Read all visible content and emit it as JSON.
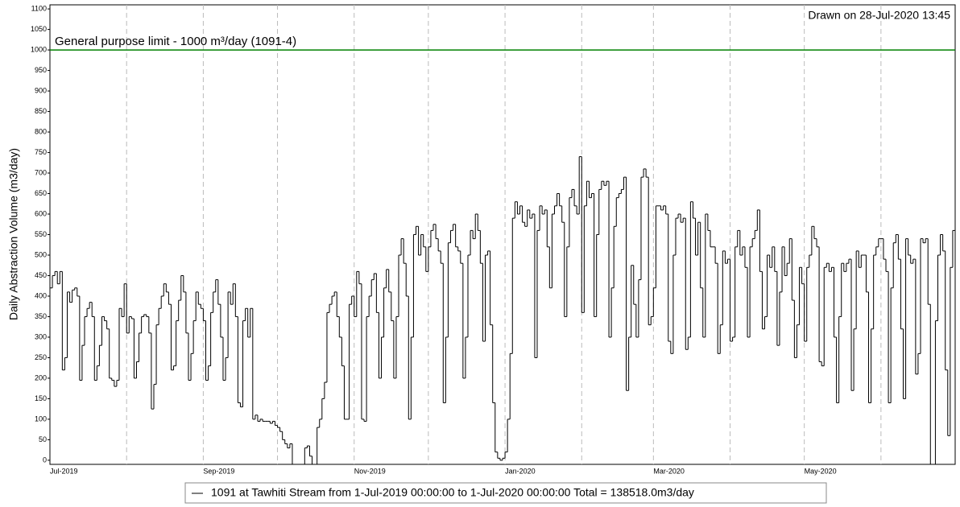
{
  "chart_data": {
    "type": "line",
    "drawstyle": "steps-post",
    "ylabel": "Daily Abstraction Volume (m3/day)",
    "annotation": "Drawn on 28-Jul-2020 13:45",
    "xlim": [
      0,
      366
    ],
    "ylim": [
      -10,
      1110
    ],
    "xticks": [
      {
        "value": 0,
        "label": "Jul-2019"
      },
      {
        "value": 62,
        "label": "Sep-2019"
      },
      {
        "value": 123,
        "label": "Nov-2019"
      },
      {
        "value": 184,
        "label": "Jan-2020"
      },
      {
        "value": 244,
        "label": "Mar-2020"
      },
      {
        "value": 305,
        "label": "May-2020"
      }
    ],
    "xminor": [
      31,
      92,
      153,
      215,
      275,
      336
    ],
    "yticks": [
      0,
      50,
      100,
      150,
      200,
      250,
      300,
      350,
      400,
      450,
      500,
      550,
      600,
      650,
      700,
      750,
      800,
      850,
      900,
      950,
      1000,
      1050,
      1100
    ],
    "grid_x": true,
    "hlines": [
      {
        "value": 1000,
        "label": "General purpose limit - 1000 m³/day (1091-4)",
        "color": "#008000"
      }
    ],
    "legend": "bottom",
    "series": [
      {
        "name": "1091 at Tawhiti Stream from  1-Jul-2019 00:00:00 to  1-Jul-2020 00:00:00  Total = 138518.0m3/day",
        "color": "#000000",
        "values": [
          420,
          450,
          460,
          430,
          460,
          220,
          250,
          410,
          385,
          415,
          420,
          400,
          195,
          280,
          350,
          370,
          385,
          350,
          195,
          230,
          280,
          350,
          340,
          320,
          200,
          195,
          180,
          195,
          370,
          350,
          430,
          310,
          350,
          345,
          200,
          240,
          310,
          350,
          355,
          350,
          310,
          125,
          185,
          330,
          370,
          400,
          430,
          410,
          380,
          220,
          230,
          340,
          390,
          450,
          410,
          310,
          195,
          260,
          340,
          410,
          380,
          370,
          340,
          195,
          230,
          360,
          410,
          440,
          380,
          300,
          195,
          250,
          410,
          380,
          430,
          350,
          140,
          130,
          340,
          370,
          300,
          370,
          100,
          110,
          95,
          100,
          95,
          95,
          95,
          90,
          95,
          85,
          80,
          70,
          50,
          40,
          30,
          40,
          -10,
          -10,
          -10,
          -10,
          -10,
          30,
          35,
          10,
          -10,
          -10,
          80,
          100,
          150,
          190,
          360,
          380,
          400,
          410,
          350,
          300,
          230,
          100,
          100,
          380,
          400,
          350,
          460,
          430,
          100,
          95,
          350,
          400,
          440,
          455,
          360,
          200,
          300,
          420,
          465,
          410,
          340,
          200,
          350,
          500,
          540,
          480,
          400,
          100,
          300,
          550,
          570,
          500,
          550,
          520,
          460,
          520,
          560,
          575,
          540,
          510,
          480,
          140,
          300,
          530,
          560,
          575,
          520,
          510,
          480,
          200,
          300,
          500,
          560,
          540,
          600,
          560,
          480,
          290,
          500,
          510,
          330,
          140,
          20,
          5,
          0,
          5,
          20,
          100,
          260,
          590,
          630,
          600,
          620,
          580,
          570,
          610,
          590,
          600,
          250,
          560,
          620,
          600,
          610,
          520,
          420,
          600,
          620,
          650,
          620,
          580,
          350,
          520,
          640,
          660,
          620,
          600,
          740,
          360,
          620,
          680,
          640,
          650,
          350,
          550,
          660,
          680,
          670,
          680,
          300,
          420,
          570,
          640,
          650,
          660,
          690,
          170,
          300,
          475,
          380,
          300,
          440,
          690,
          710,
          690,
          330,
          350,
          420,
          620,
          620,
          610,
          620,
          600,
          290,
          260,
          500,
          590,
          600,
          580,
          590,
          270,
          300,
          630,
          590,
          500,
          580,
          420,
          300,
          600,
          560,
          520,
          520,
          480,
          260,
          330,
          510,
          480,
          490,
          290,
          300,
          520,
          560,
          500,
          520,
          470,
          300,
          520,
          540,
          560,
          610,
          460,
          320,
          350,
          500,
          470,
          520,
          460,
          280,
          410,
          520,
          450,
          480,
          540,
          390,
          250,
          330,
          470,
          430,
          290,
          470,
          500,
          570,
          540,
          520,
          240,
          230,
          470,
          480,
          460,
          470,
          300,
          140,
          350,
          480,
          460,
          480,
          490,
          170,
          320,
          510,
          470,
          500,
          500,
          410,
          140,
          320,
          500,
          520,
          540,
          540,
          490,
          460,
          140,
          420,
          530,
          550,
          490,
          320,
          150,
          540,
          500,
          480,
          490,
          210,
          260,
          540,
          530,
          540,
          380,
          -10,
          -10,
          340,
          500,
          550,
          510,
          220,
          60,
          470,
          560
        ]
      }
    ]
  }
}
